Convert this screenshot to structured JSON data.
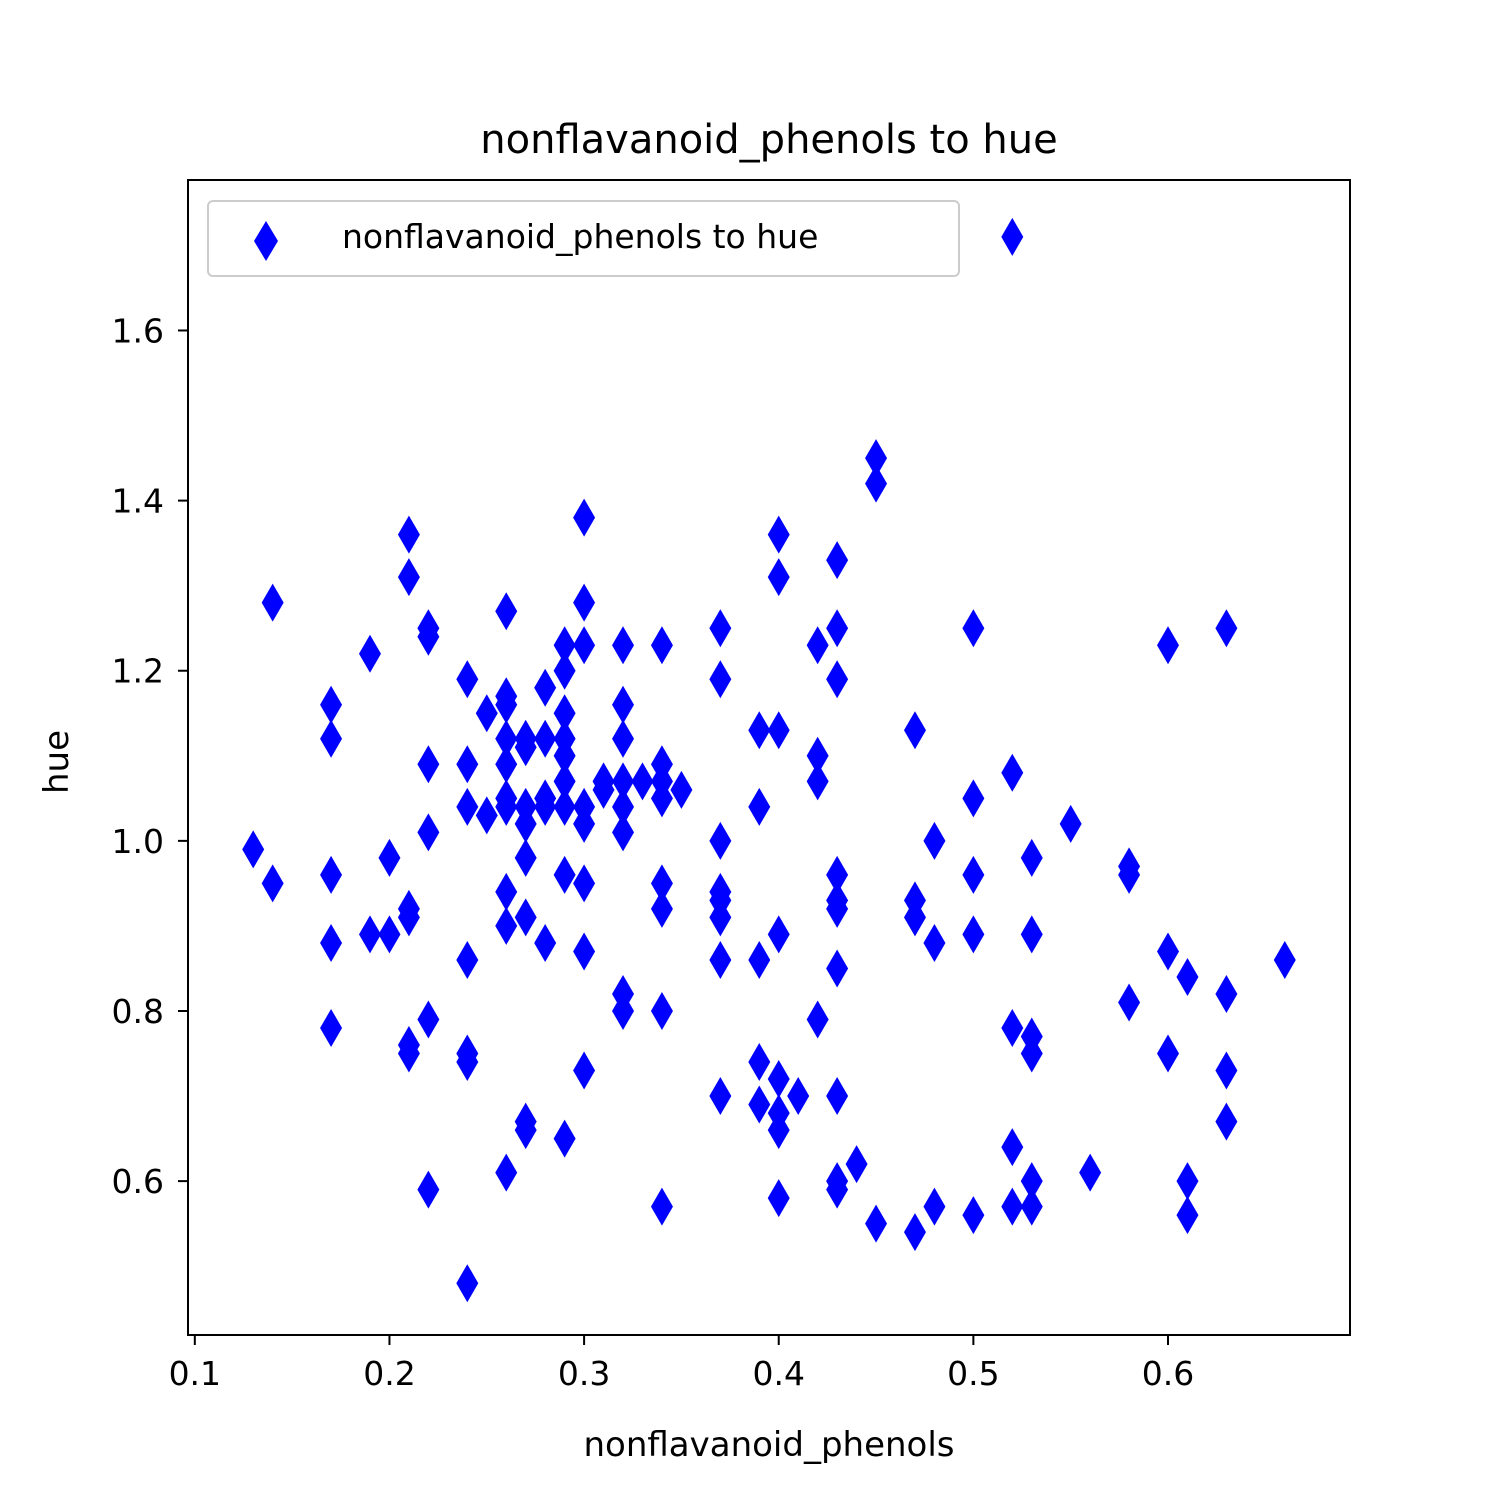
{
  "chart_data": {
    "type": "scatter",
    "title": "nonflavanoid_phenols to hue",
    "xlabel": "nonflavanoid_phenols",
    "ylabel": "hue",
    "xlim": [
      0.0965,
      0.6935
    ],
    "ylim": [
      0.4191,
      1.7769
    ],
    "xticks": [
      "0.1",
      "0.2",
      "0.3",
      "0.4",
      "0.5",
      "0.6"
    ],
    "yticks": [
      "0.6",
      "0.8",
      "1.0",
      "1.2",
      "1.4",
      "1.6"
    ],
    "grid": false,
    "legend": {
      "position": "top-left",
      "entries": [
        "nonflavanoid_phenols to hue"
      ]
    },
    "marker": "thin-diamond",
    "color": "#0000ff",
    "series": [
      {
        "name": "nonflavanoid_phenols to hue",
        "points": [
          [
            0.13,
            0.99
          ],
          [
            0.14,
            1.28
          ],
          [
            0.14,
            0.95
          ],
          [
            0.17,
            1.16
          ],
          [
            0.17,
            1.12
          ],
          [
            0.17,
            0.96
          ],
          [
            0.17,
            0.88
          ],
          [
            0.17,
            0.78
          ],
          [
            0.19,
            1.22
          ],
          [
            0.19,
            0.89
          ],
          [
            0.2,
            0.98
          ],
          [
            0.2,
            0.89
          ],
          [
            0.21,
            1.36
          ],
          [
            0.21,
            1.31
          ],
          [
            0.21,
            0.92
          ],
          [
            0.21,
            0.91
          ],
          [
            0.21,
            0.76
          ],
          [
            0.21,
            0.75
          ],
          [
            0.22,
            1.25
          ],
          [
            0.22,
            1.24
          ],
          [
            0.22,
            1.09
          ],
          [
            0.22,
            1.01
          ],
          [
            0.22,
            0.79
          ],
          [
            0.22,
            0.59
          ],
          [
            0.24,
            1.19
          ],
          [
            0.24,
            1.09
          ],
          [
            0.24,
            1.04
          ],
          [
            0.24,
            0.86
          ],
          [
            0.24,
            0.75
          ],
          [
            0.24,
            0.74
          ],
          [
            0.24,
            0.48
          ],
          [
            0.25,
            1.15
          ],
          [
            0.25,
            1.03
          ],
          [
            0.26,
            1.17
          ],
          [
            0.26,
            1.16
          ],
          [
            0.26,
            1.12
          ],
          [
            0.26,
            1.09
          ],
          [
            0.26,
            1.05
          ],
          [
            0.26,
            1.04
          ],
          [
            0.26,
            0.94
          ],
          [
            0.26,
            0.9
          ],
          [
            0.26,
            0.61
          ],
          [
            0.26,
            1.27
          ],
          [
            0.27,
            1.12
          ],
          [
            0.27,
            1.11
          ],
          [
            0.27,
            1.04
          ],
          [
            0.27,
            1.02
          ],
          [
            0.27,
            0.98
          ],
          [
            0.27,
            0.91
          ],
          [
            0.27,
            0.67
          ],
          [
            0.27,
            0.66
          ],
          [
            0.28,
            1.18
          ],
          [
            0.28,
            1.12
          ],
          [
            0.28,
            1.05
          ],
          [
            0.28,
            1.04
          ],
          [
            0.28,
            0.88
          ],
          [
            0.29,
            1.23
          ],
          [
            0.29,
            1.2
          ],
          [
            0.29,
            1.15
          ],
          [
            0.29,
            1.12
          ],
          [
            0.29,
            1.1
          ],
          [
            0.29,
            1.07
          ],
          [
            0.29,
            1.04
          ],
          [
            0.29,
            0.96
          ],
          [
            0.29,
            0.65
          ],
          [
            0.3,
            1.38
          ],
          [
            0.3,
            1.28
          ],
          [
            0.3,
            1.23
          ],
          [
            0.3,
            1.04
          ],
          [
            0.3,
            1.02
          ],
          [
            0.3,
            0.95
          ],
          [
            0.3,
            0.87
          ],
          [
            0.3,
            0.73
          ],
          [
            0.31,
            1.07
          ],
          [
            0.31,
            1.06
          ],
          [
            0.32,
            1.23
          ],
          [
            0.32,
            1.16
          ],
          [
            0.32,
            1.12
          ],
          [
            0.32,
            1.07
          ],
          [
            0.32,
            1.04
          ],
          [
            0.32,
            1.01
          ],
          [
            0.32,
            0.82
          ],
          [
            0.32,
            0.8
          ],
          [
            0.33,
            1.07
          ],
          [
            0.34,
            1.23
          ],
          [
            0.34,
            1.09
          ],
          [
            0.34,
            1.07
          ],
          [
            0.34,
            1.05
          ],
          [
            0.34,
            0.95
          ],
          [
            0.34,
            0.92
          ],
          [
            0.34,
            0.8
          ],
          [
            0.34,
            0.57
          ],
          [
            0.35,
            1.06
          ],
          [
            0.37,
            1.25
          ],
          [
            0.37,
            1.19
          ],
          [
            0.37,
            1.0
          ],
          [
            0.37,
            0.94
          ],
          [
            0.37,
            0.93
          ],
          [
            0.37,
            0.91
          ],
          [
            0.37,
            0.86
          ],
          [
            0.37,
            0.7
          ],
          [
            0.39,
            1.13
          ],
          [
            0.39,
            1.04
          ],
          [
            0.39,
            0.86
          ],
          [
            0.39,
            0.74
          ],
          [
            0.39,
            0.69
          ],
          [
            0.4,
            1.36
          ],
          [
            0.4,
            1.31
          ],
          [
            0.4,
            1.13
          ],
          [
            0.4,
            0.89
          ],
          [
            0.4,
            0.72
          ],
          [
            0.4,
            0.68
          ],
          [
            0.4,
            0.66
          ],
          [
            0.4,
            0.58
          ],
          [
            0.41,
            0.7
          ],
          [
            0.42,
            1.23
          ],
          [
            0.42,
            1.1
          ],
          [
            0.42,
            1.07
          ],
          [
            0.42,
            0.79
          ],
          [
            0.43,
            1.33
          ],
          [
            0.43,
            1.25
          ],
          [
            0.43,
            1.19
          ],
          [
            0.43,
            0.96
          ],
          [
            0.43,
            0.93
          ],
          [
            0.43,
            0.92
          ],
          [
            0.43,
            0.85
          ],
          [
            0.43,
            0.7
          ],
          [
            0.43,
            0.6
          ],
          [
            0.43,
            0.59
          ],
          [
            0.44,
            0.62
          ],
          [
            0.45,
            1.45
          ],
          [
            0.45,
            1.42
          ],
          [
            0.45,
            0.55
          ],
          [
            0.47,
            1.13
          ],
          [
            0.47,
            0.93
          ],
          [
            0.47,
            0.91
          ],
          [
            0.47,
            0.54
          ],
          [
            0.48,
            1.0
          ],
          [
            0.48,
            0.88
          ],
          [
            0.48,
            0.57
          ],
          [
            0.5,
            1.25
          ],
          [
            0.5,
            1.05
          ],
          [
            0.5,
            0.96
          ],
          [
            0.5,
            0.89
          ],
          [
            0.5,
            0.56
          ],
          [
            0.52,
            1.71
          ],
          [
            0.52,
            1.08
          ],
          [
            0.52,
            0.78
          ],
          [
            0.52,
            0.64
          ],
          [
            0.52,
            0.57
          ],
          [
            0.53,
            0.98
          ],
          [
            0.53,
            0.89
          ],
          [
            0.53,
            0.77
          ],
          [
            0.53,
            0.75
          ],
          [
            0.53,
            0.6
          ],
          [
            0.53,
            0.57
          ],
          [
            0.55,
            1.02
          ],
          [
            0.56,
            0.61
          ],
          [
            0.58,
            0.97
          ],
          [
            0.58,
            0.96
          ],
          [
            0.58,
            0.81
          ],
          [
            0.6,
            1.23
          ],
          [
            0.6,
            0.87
          ],
          [
            0.6,
            0.75
          ],
          [
            0.61,
            0.84
          ],
          [
            0.61,
            0.6
          ],
          [
            0.61,
            0.56
          ],
          [
            0.63,
            1.25
          ],
          [
            0.63,
            0.82
          ],
          [
            0.63,
            0.73
          ],
          [
            0.63,
            0.67
          ],
          [
            0.66,
            0.86
          ]
        ]
      }
    ]
  }
}
